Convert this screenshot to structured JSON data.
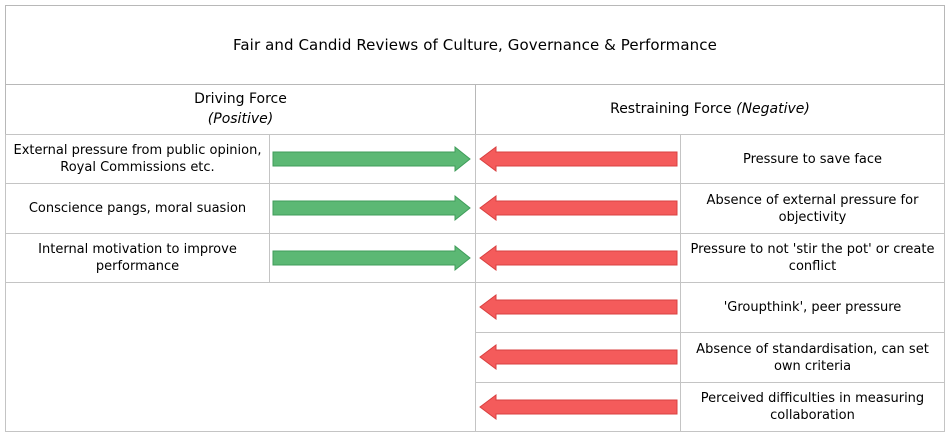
{
  "title": "Fair and Candid Reviews of Culture, Governance & Performance",
  "driving": {
    "heading": "Driving Force",
    "subheading": "(Positive)",
    "items": [
      "External pressure from public opinion, Royal Commissions etc.",
      "Conscience pangs, moral suasion",
      "Internal motivation to improve performance"
    ]
  },
  "restraining": {
    "heading": "Restraining Force",
    "subheading": "(Negative)",
    "items": [
      "Pressure to save face",
      "Absence of external pressure for objectivity",
      "Pressure to not 'stir the pot' or create conflict",
      "'Groupthink', peer pressure",
      "Absence of standardisation, can set own criteria",
      "Perceived difficulties in measuring collaboration"
    ]
  },
  "colors": {
    "driving_arrow": "#5cb874",
    "restraining_arrow": "#f45b5b",
    "border": "#c4c4c4"
  }
}
